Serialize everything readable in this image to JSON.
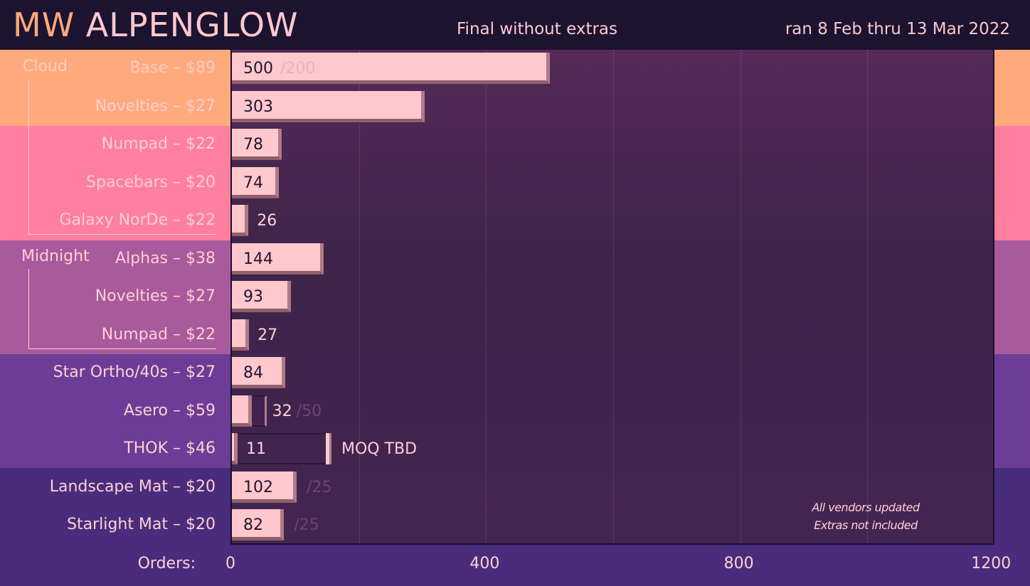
{
  "header": {
    "title_prefix": "MW",
    "title_main": "ALPENGLOW",
    "subtitle": "Final without extras",
    "dates": "ran 8 Feb thru 13 Mar 2022"
  },
  "colors": {
    "background_dark": "#1b1330",
    "band_orange": "#ffaa7c",
    "band_pink": "#ff7f9f",
    "band_mauve": "#a85a9c",
    "band_purple": "#6c3d96",
    "band_indigo": "#4a2c7c",
    "bar_fill": "#ffc8cc",
    "text_light": "#ffd0d4"
  },
  "groups": [
    {
      "label": "Cloud"
    },
    {
      "label": "Midnight"
    }
  ],
  "chart_data": {
    "type": "bar",
    "orientation": "horizontal",
    "xlabel": "Orders:",
    "xlim": [
      0,
      1200
    ],
    "xticks": [
      "0",
      "400",
      "800",
      "1200"
    ],
    "grid": true,
    "categories": [
      "Base – $89",
      "Novelties – $27",
      "Numpad – $22",
      "Spacebars – $20",
      "Galaxy NorDe – $22",
      "Alphas – $38",
      "Novelties – $27",
      "Numpad – $22",
      "Star Ortho/40s – $27",
      "Asero – $59",
      "THOK – $46",
      "Landscape Mat – $20",
      "Starlight Mat – $20"
    ],
    "values": [
      500,
      303,
      78,
      74,
      26,
      144,
      93,
      27,
      84,
      32,
      11,
      102,
      82
    ],
    "value_labels": [
      "500",
      "303",
      "78",
      "74",
      "26",
      "144",
      "93",
      "27",
      "84",
      "32",
      "11",
      "102",
      "82"
    ],
    "moq": [
      200,
      null,
      null,
      null,
      null,
      null,
      null,
      null,
      null,
      50,
      null,
      25,
      25
    ],
    "moq_labels": [
      "/200",
      "",
      "",
      "",
      "",
      "",
      "",
      "",
      "",
      "/50",
      "MOQ TBD",
      "/25",
      "/25"
    ],
    "annotations": [
      "All vendors updated",
      "Extras not included"
    ]
  }
}
